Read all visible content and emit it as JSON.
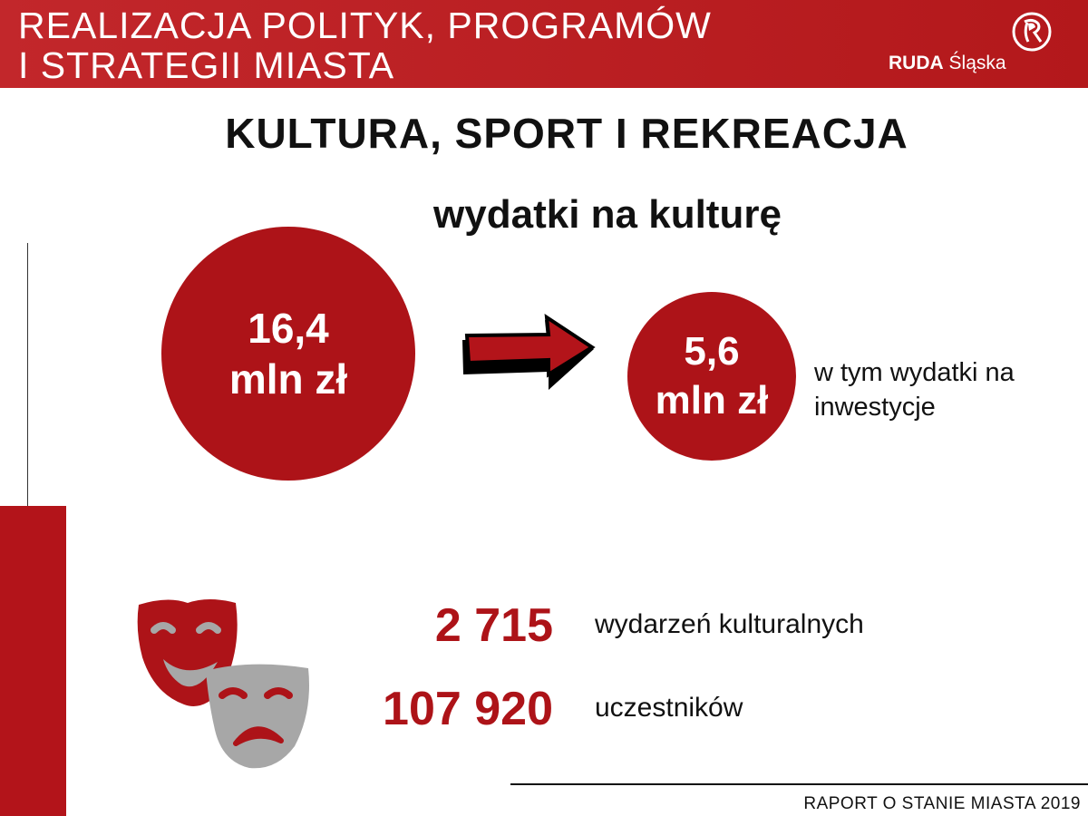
{
  "header": {
    "title_line1": "REALIZACJA POLITYK, PROGRAMÓW",
    "title_line2": "I STRATEGII MIASTA",
    "logo_bold": "RUDA",
    "logo_regular": "Śląska",
    "brand_color": "#b3181b"
  },
  "section_title": "KULTURA, SPORT I REKREACJA",
  "subtitle": "wydatki na kulturę",
  "spending": {
    "total_value": "16,4",
    "total_unit": "mln zł",
    "investment_value": "5,6",
    "investment_unit": "mln zł",
    "investment_note_line1": "w tym wydatki na",
    "investment_note_line2": "inwestycje",
    "arrow_icon": "arrow-right-icon"
  },
  "stats": [
    {
      "value": "2 715",
      "label": "wydarzeń kulturalnych"
    },
    {
      "value": "107 920",
      "label": "uczestników"
    }
  ],
  "masks_icon": "theater-masks-icon",
  "footer": "RAPORT O STANIE MIASTA 2019"
}
